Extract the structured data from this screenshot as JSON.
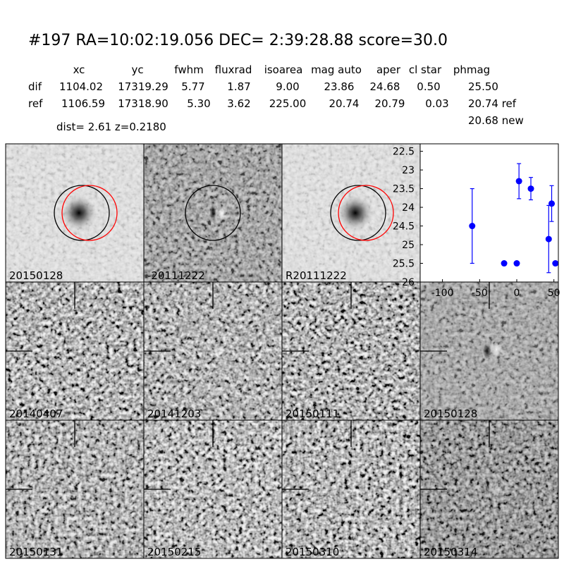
{
  "header": {
    "title": "#197   RA=10:02:19.056 DEC= 2:39:28.88      score=30.0",
    "dist": "dist=  2.61      z=0.2180"
  },
  "table": {
    "columns": [
      "xc",
      "yc",
      "fwhm",
      "fluxrad",
      "isoarea",
      "mag auto",
      "aper",
      "cl star",
      "phmag"
    ],
    "rows": [
      {
        "label": "dif",
        "cells": [
          "1104.02",
          "17319.29",
          "5.77",
          "1.87",
          "9.00",
          "23.86",
          "24.68",
          "0.50",
          "25.50"
        ]
      },
      {
        "label": "ref",
        "cells": [
          "1106.59",
          "17318.90",
          "5.30",
          "3.62",
          "225.00",
          "20.74",
          "20.79",
          "0.03",
          "20.74 ref"
        ]
      }
    ],
    "extra": "20.68 new"
  },
  "panels": [
    {
      "label": "20150128"
    },
    {
      "label": "-20111222"
    },
    {
      "label": "R20111222"
    },
    {
      "label": "20140407"
    },
    {
      "label": "20141203"
    },
    {
      "label": "20150111"
    },
    {
      "label": "20150128",
      "color": "#ff0000"
    },
    {
      "label": "20150131"
    },
    {
      "label": "20150215"
    },
    {
      "label": "20150310"
    },
    {
      "label": "20150314"
    }
  ],
  "chart_data": {
    "type": "errorbar",
    "series": [
      {
        "color": "#0000ff",
        "x": [
          -60,
          -17,
          0,
          3,
          19,
          43,
          47,
          52
        ],
        "values": [
          24.5,
          25.5,
          25.5,
          23.3,
          23.5,
          24.85,
          23.9,
          25.5
        ],
        "errors": [
          1.0,
          0,
          0,
          0.47,
          0.3,
          0.9,
          0.48,
          0
        ]
      }
    ],
    "xlim": [
      -130,
      56
    ],
    "xticks": [
      -100,
      -50,
      0,
      50
    ],
    "ylim": [
      22.3,
      26.0
    ],
    "yticks": [
      22.5,
      23.0,
      23.5,
      24.0,
      24.5,
      25.0,
      25.5,
      26.0
    ],
    "y_inverted": true
  }
}
